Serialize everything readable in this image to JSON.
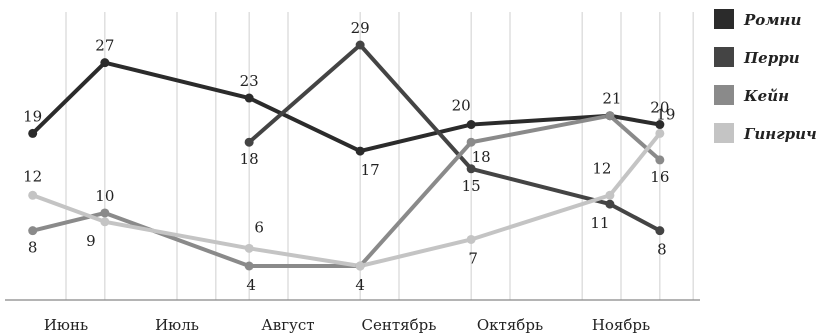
{
  "chart_data": {
    "type": "line",
    "categories": [
      "Июнь",
      "Июль",
      "Август",
      "Сентябрь",
      "Октябрь",
      "Ноябрь"
    ],
    "x_months": [
      0,
      0.35,
      1,
      1.35,
      1.65,
      2,
      2.65,
      3,
      3.65,
      4,
      4.65,
      5,
      5.35,
      5.65
    ],
    "ylim": [
      4,
      29
    ],
    "grid": true,
    "legend_position": "right",
    "series": [
      {
        "name": "Ромни",
        "color": "#2b2b2b",
        "points": [
          [
            -0.3,
            19
          ],
          [
            0.35,
            27
          ],
          [
            1.65,
            23
          ],
          [
            2.65,
            17
          ],
          [
            3.65,
            20
          ],
          [
            4.9,
            21
          ],
          [
            5.35,
            20
          ]
        ],
        "labels": [
          "19",
          "27",
          "23",
          "17",
          "20",
          "21",
          "20"
        ]
      },
      {
        "name": "Перри",
        "color": "#444444",
        "points": [
          [
            1.65,
            18
          ],
          [
            2.65,
            29
          ],
          [
            3.65,
            15
          ],
          [
            4.9,
            11
          ],
          [
            5.35,
            8
          ]
        ],
        "labels": [
          "18",
          "29",
          "15",
          "11",
          "8"
        ]
      },
      {
        "name": "Кейн",
        "color": "#8a8a8a",
        "points": [
          [
            -0.3,
            8
          ],
          [
            0.35,
            10
          ],
          [
            1.65,
            4
          ],
          [
            2.65,
            4
          ],
          [
            3.65,
            18
          ],
          [
            4.9,
            21
          ],
          [
            5.35,
            16
          ]
        ],
        "labels": [
          "8",
          "10",
          "4",
          "4",
          "18",
          "",
          "16"
        ]
      },
      {
        "name": "Гингрич",
        "color": "#c4c4c4",
        "points": [
          [
            -0.3,
            12
          ],
          [
            0.35,
            9
          ],
          [
            1.65,
            6
          ],
          [
            2.65,
            4
          ],
          [
            3.65,
            7
          ],
          [
            4.9,
            12
          ],
          [
            5.35,
            19
          ]
        ],
        "labels": [
          "12",
          "9",
          "6",
          "",
          "7",
          "12",
          "19"
        ]
      }
    ]
  }
}
